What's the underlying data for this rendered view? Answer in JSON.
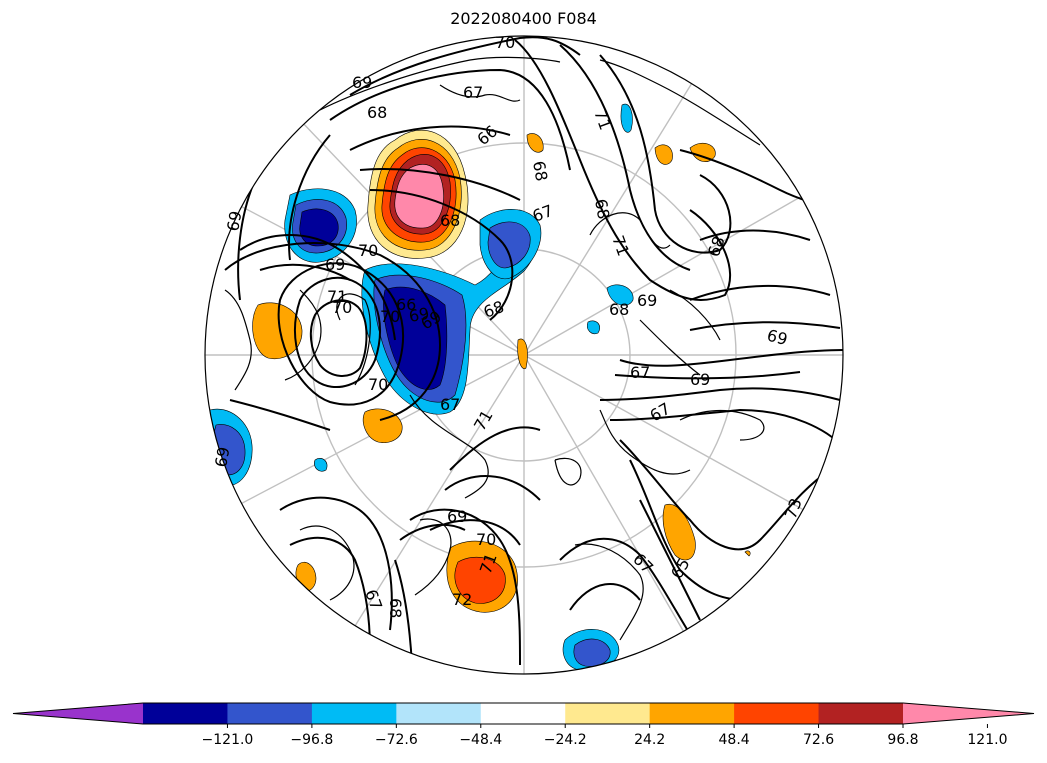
{
  "title": "2022080400 F084",
  "colorbar": {
    "colors": [
      "#9933cc",
      "#000099",
      "#3355cc",
      "#00bbf5",
      "#b2e4fa",
      "#ffffff",
      "#ffe98f",
      "#ffa500",
      "#ff4400",
      "#b22222",
      "#ff88aa"
    ],
    "tick_labels": [
      "−121.0",
      "−96.8",
      "−72.6",
      "−48.4",
      "−24.2",
      "24.2",
      "48.4",
      "72.6",
      "96.8",
      "121.0"
    ],
    "extend": "both"
  },
  "contour_labels": [
    "70",
    "69",
    "68",
    "67",
    "71",
    "66",
    "68",
    "69",
    "70",
    "68",
    "67",
    "69",
    "68",
    "68",
    "67",
    "69",
    "69",
    "69",
    "71",
    "70",
    "67",
    "69",
    "68",
    "69",
    "70",
    "72",
    "71",
    "67",
    "68",
    "67",
    "65",
    "71",
    "70",
    "73",
    "69",
    "70",
    "68",
    "66",
    "67",
    "71",
    "69"
  ],
  "map": {
    "projection": "north-polar-stereographic",
    "graticule": true,
    "coastlines": true
  }
}
